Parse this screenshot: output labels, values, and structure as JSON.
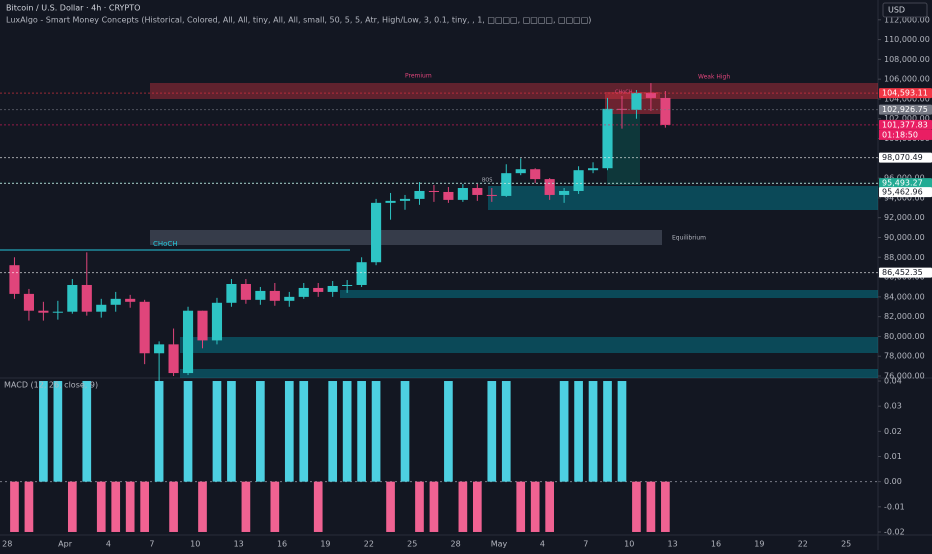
{
  "header": {
    "symbol": "Bitcoin / U.S. Dollar · 4h · CRYPTO",
    "indicator": "LuxAlgo - Smart Money Concepts (Historical, Colored, All, All, tiny, All, All, small, 50, 5, 5, Atr, High/Low, 3, 0.1, tiny, , 1, □□□□, □□□□, □□□□)",
    "currency": "USD"
  },
  "annotations": [
    "Premium",
    "Weak High",
    "Equilibrium",
    "CHoCH",
    "CHoCH",
    "BOS"
  ],
  "countdown": "01:18:50",
  "chart_data": [
    {
      "type": "candlestick",
      "up_color": "#2ec4c4",
      "down_color": "#e0457b",
      "x": [
        0,
        1,
        2,
        3,
        4,
        5,
        6,
        7,
        8,
        9,
        10,
        11,
        12,
        13,
        14,
        15,
        16,
        17,
        18,
        19,
        20,
        21,
        22,
        23,
        24,
        25,
        26,
        27,
        28,
        29,
        30,
        31,
        32,
        33,
        34,
        35,
        36,
        37,
        38,
        39,
        40,
        41,
        42,
        43,
        44,
        45
      ],
      "open": [
        87200,
        84300,
        82600,
        82400,
        82500,
        85200,
        82500,
        83200,
        83800,
        83500,
        78300,
        79200,
        76300,
        82600,
        79600,
        83400,
        85300,
        83700,
        84600,
        83600,
        84000,
        84900,
        84500,
        85100,
        85200,
        87500,
        93500,
        93700,
        93900,
        94700,
        94600,
        93800,
        95000,
        94300,
        94200,
        96500,
        96900,
        95900,
        94300,
        94700,
        96800,
        97000,
        103000,
        102900,
        104600,
        104100
      ],
      "high": [
        88000,
        84800,
        83500,
        83600,
        85800,
        88500,
        83800,
        84500,
        84200,
        83700,
        79500,
        80800,
        83000,
        82600,
        83900,
        85800,
        85800,
        85000,
        85400,
        84500,
        85400,
        85400,
        85600,
        85700,
        88000,
        93900,
        94500,
        94300,
        95600,
        95300,
        95100,
        95400,
        95400,
        95000,
        97400,
        98000,
        97000,
        96000,
        95000,
        97200,
        97600,
        104100,
        104300,
        104900,
        105600,
        104800
      ],
      "low": [
        83800,
        81600,
        81600,
        81700,
        82300,
        82100,
        81900,
        82500,
        82900,
        77200,
        74500,
        76000,
        76100,
        78800,
        79200,
        83000,
        83300,
        83200,
        83100,
        83000,
        83800,
        84000,
        84000,
        84400,
        85000,
        87200,
        91800,
        92800,
        93300,
        93600,
        93500,
        93600,
        93700,
        93600,
        94100,
        96300,
        95500,
        93800,
        93500,
        94400,
        96500,
        96800,
        101000,
        102000,
        102800,
        101100
      ],
      "close": [
        84300,
        82600,
        82400,
        82500,
        85200,
        82500,
        83200,
        83800,
        83500,
        78300,
        79200,
        76300,
        82600,
        79600,
        83400,
        85300,
        83700,
        84600,
        83600,
        84000,
        84900,
        84500,
        85100,
        85200,
        87500,
        93500,
        93700,
        93900,
        94700,
        94600,
        93800,
        95000,
        94300,
        94200,
        96500,
        96900,
        95900,
        94300,
        94700,
        96800,
        97000,
        103000,
        102900,
        104600,
        104100,
        101377.83
      ],
      "xlim": [
        -0.5,
        60.2
      ],
      "xticks": [
        {
          "value": 0,
          "label": "28"
        },
        {
          "value": 4,
          "label": "Apr"
        },
        {
          "value": 7,
          "label": "4"
        },
        {
          "value": 10,
          "label": "7"
        },
        {
          "value": 13,
          "label": "10"
        },
        {
          "value": 16,
          "label": "13"
        },
        {
          "value": 19,
          "label": "16"
        },
        {
          "value": 22,
          "label": "19"
        },
        {
          "value": 25,
          "label": "22"
        },
        {
          "value": 28,
          "label": "25"
        },
        {
          "value": 31,
          "label": "28"
        },
        {
          "value": 34,
          "label": "May"
        },
        {
          "value": 37,
          "label": "4"
        },
        {
          "value": 40,
          "label": "7"
        },
        {
          "value": 43,
          "label": "10"
        },
        {
          "value": 46,
          "label": "13"
        },
        {
          "value": 49,
          "label": "16"
        },
        {
          "value": 52,
          "label": "19"
        },
        {
          "value": 55,
          "label": "22"
        },
        {
          "value": 58,
          "label": "25"
        }
      ],
      "ylim": [
        75800,
        114000
      ],
      "yticks": [
        {
          "value": 76000,
          "label": "76,000.00"
        },
        {
          "value": 78000,
          "label": "78,000.00"
        },
        {
          "value": 80000,
          "label": "80,000.00"
        },
        {
          "value": 82000,
          "label": "82,000.00"
        },
        {
          "value": 84000,
          "label": "84,000.00"
        },
        {
          "value": 86000,
          "label": "86,000.00"
        },
        {
          "value": 88000,
          "label": "88,000.00"
        },
        {
          "value": 90000,
          "label": "90,000.00"
        },
        {
          "value": 92000,
          "label": "92,000.00"
        },
        {
          "value": 94000,
          "label": "94,000.00"
        },
        {
          "value": 96000,
          "label": "96,000.00"
        },
        {
          "value": 98000,
          "label": "98,000.00"
        },
        {
          "value": 100000,
          "label": "100,000.00"
        },
        {
          "value": 102000,
          "label": "102,000.00"
        },
        {
          "value": 104000,
          "label": "104,000.00"
        },
        {
          "value": 106000,
          "label": "106,000.00"
        },
        {
          "value": 108000,
          "label": "108,000.00"
        },
        {
          "value": 110000,
          "label": "110,000.00"
        },
        {
          "value": 112000,
          "label": "112,000.00"
        }
      ],
      "price_labels": [
        {
          "value": 104593.11,
          "label": "104,593.11",
          "color": "#f23645"
        },
        {
          "value": 102926.75,
          "label": "102,926.75",
          "color": "#787b86"
        },
        {
          "value": 101377.83,
          "label": "101,377.83",
          "color": "#e91e63"
        },
        {
          "value": 98070.49,
          "label": "98,070.49",
          "color": "#ffffff"
        },
        {
          "value": 95493.27,
          "label": "95,493.27",
          "color": "#22ab94"
        },
        {
          "value": 95462.96,
          "label": "95,462.96",
          "color": "#ffffff"
        },
        {
          "value": 86452.35,
          "label": "86,452.35",
          "color": "#ffffff"
        }
      ]
    },
    {
      "type": "histogram",
      "title": "MACD (12, 26, close, 9)",
      "up_color": "#4dd0e1",
      "down_color": "#f06292",
      "x": [
        0,
        1,
        2,
        3,
        4,
        5,
        6,
        7,
        8,
        9,
        10,
        11,
        12,
        13,
        14,
        15,
        16,
        17,
        18,
        19,
        20,
        21,
        22,
        23,
        24,
        25,
        26,
        27,
        28,
        29,
        30,
        31,
        32,
        33,
        34,
        35,
        36,
        37,
        38,
        39,
        40,
        41,
        42,
        43,
        44,
        45
      ],
      "values": [
        -0.02,
        -0.02,
        0.04,
        0.04,
        -0.02,
        0.04,
        -0.02,
        -0.02,
        -0.02,
        -0.02,
        0.04,
        -0.02,
        0.04,
        -0.02,
        0.04,
        0.04,
        -0.02,
        0.04,
        -0.02,
        0.04,
        0.04,
        -0.02,
        0.04,
        0.04,
        0.04,
        0.04,
        -0.02,
        0.04,
        -0.02,
        -0.02,
        0.04,
        -0.02,
        -0.02,
        0.04,
        0.04,
        -0.02,
        -0.02,
        -0.02,
        0.04,
        0.04,
        0.04,
        0.04,
        0.04,
        -0.02,
        -0.02,
        -0.02
      ],
      "ylim": [
        -0.0212,
        0.0412
      ],
      "yticks": [
        0.04,
        0.03,
        0.02,
        0.01,
        {
          "value": 0,
          "label": "0.00"
        },
        -0.01,
        -0.02
      ]
    }
  ]
}
